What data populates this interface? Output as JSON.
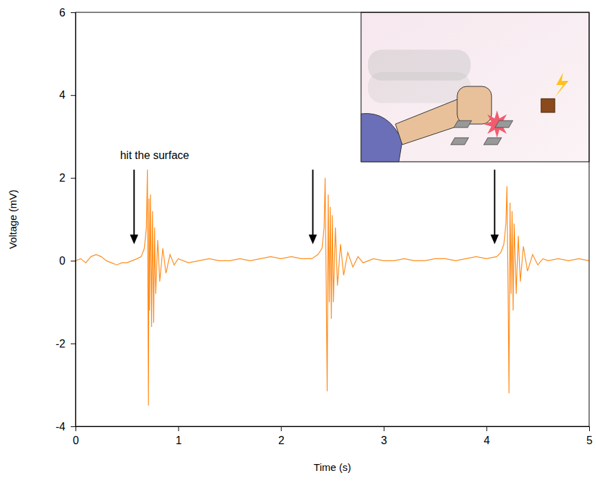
{
  "chart_data": {
    "type": "line",
    "x_label": "Time (s)",
    "y_label": "Voltage (mV)",
    "color": "#ff8c1a",
    "xlim": [
      0,
      5
    ],
    "xticks": [
      0,
      1,
      2,
      3,
      4,
      5
    ],
    "ylim": [
      -4,
      6
    ],
    "yticks": [
      -4,
      -2,
      0,
      2,
      4,
      6
    ],
    "grid": false,
    "annotations": [
      {
        "text": "hit the surface",
        "x": 0.77,
        "y": 2.45
      }
    ],
    "arrows": [
      {
        "x": 0.57,
        "y_start": 2.2,
        "y_end": 0.4
      },
      {
        "x": 2.31,
        "y_start": 2.2,
        "y_end": 0.4
      },
      {
        "x": 4.08,
        "y_start": 2.2,
        "y_end": 0.4
      }
    ],
    "x": [
      0,
      0.05,
      0.1,
      0.15,
      0.2,
      0.25,
      0.3,
      0.35,
      0.4,
      0.45,
      0.5,
      0.55,
      0.6,
      0.64,
      0.67,
      0.69,
      0.7,
      0.705,
      0.71,
      0.715,
      0.72,
      0.73,
      0.74,
      0.75,
      0.76,
      0.77,
      0.78,
      0.8,
      0.82,
      0.85,
      0.88,
      0.92,
      0.96,
      1.0,
      1.1,
      1.2,
      1.3,
      1.4,
      1.5,
      1.6,
      1.7,
      1.8,
      1.9,
      2.0,
      2.1,
      2.2,
      2.3,
      2.36,
      2.4,
      2.42,
      2.43,
      2.44,
      2.45,
      2.46,
      2.47,
      2.48,
      2.49,
      2.5,
      2.51,
      2.53,
      2.55,
      2.58,
      2.61,
      2.65,
      2.7,
      2.75,
      2.8,
      2.9,
      3.0,
      3.1,
      3.2,
      3.3,
      3.4,
      3.5,
      3.6,
      3.7,
      3.8,
      3.9,
      4.0,
      4.1,
      4.14,
      4.17,
      4.19,
      4.2,
      4.21,
      4.22,
      4.23,
      4.24,
      4.25,
      4.26,
      4.27,
      4.29,
      4.31,
      4.33,
      4.36,
      4.4,
      4.45,
      4.5,
      4.55,
      4.6,
      4.7,
      4.8,
      4.9,
      5.0
    ],
    "values": [
      0,
      0.05,
      -0.05,
      0.1,
      0.15,
      0.1,
      0,
      -0.05,
      -0.1,
      -0.05,
      -0.05,
      0,
      0.05,
      0.1,
      0.3,
      0.8,
      2.2,
      -1.0,
      -3.5,
      1.5,
      -1.2,
      1.6,
      -1.6,
      1.2,
      -1.5,
      0.8,
      -0.8,
      0.5,
      -0.5,
      0.3,
      -0.3,
      0.15,
      -0.1,
      0.05,
      -0.05,
      0,
      0.05,
      0,
      0,
      0.05,
      0,
      0.05,
      0.1,
      0.05,
      0.1,
      0.05,
      0.05,
      0.15,
      0.3,
      0.8,
      2.0,
      -0.5,
      -3.15,
      1.6,
      -1.0,
      1.3,
      -1.4,
      1.1,
      -1.0,
      0.8,
      -0.6,
      0.4,
      -0.35,
      0.2,
      -0.15,
      0.1,
      -0.05,
      0.05,
      0,
      0,
      0.05,
      0,
      0,
      0.05,
      0.05,
      0,
      0.05,
      0.1,
      0.05,
      0.1,
      0.2,
      0.4,
      0.9,
      1.8,
      -0.5,
      -3.2,
      1.4,
      -0.8,
      1.2,
      -1.2,
      0.9,
      -0.8,
      0.6,
      -0.5,
      0.35,
      -0.25,
      0.15,
      -0.1,
      0.05,
      0,
      0.05,
      0,
      0.05,
      0
    ]
  }
}
